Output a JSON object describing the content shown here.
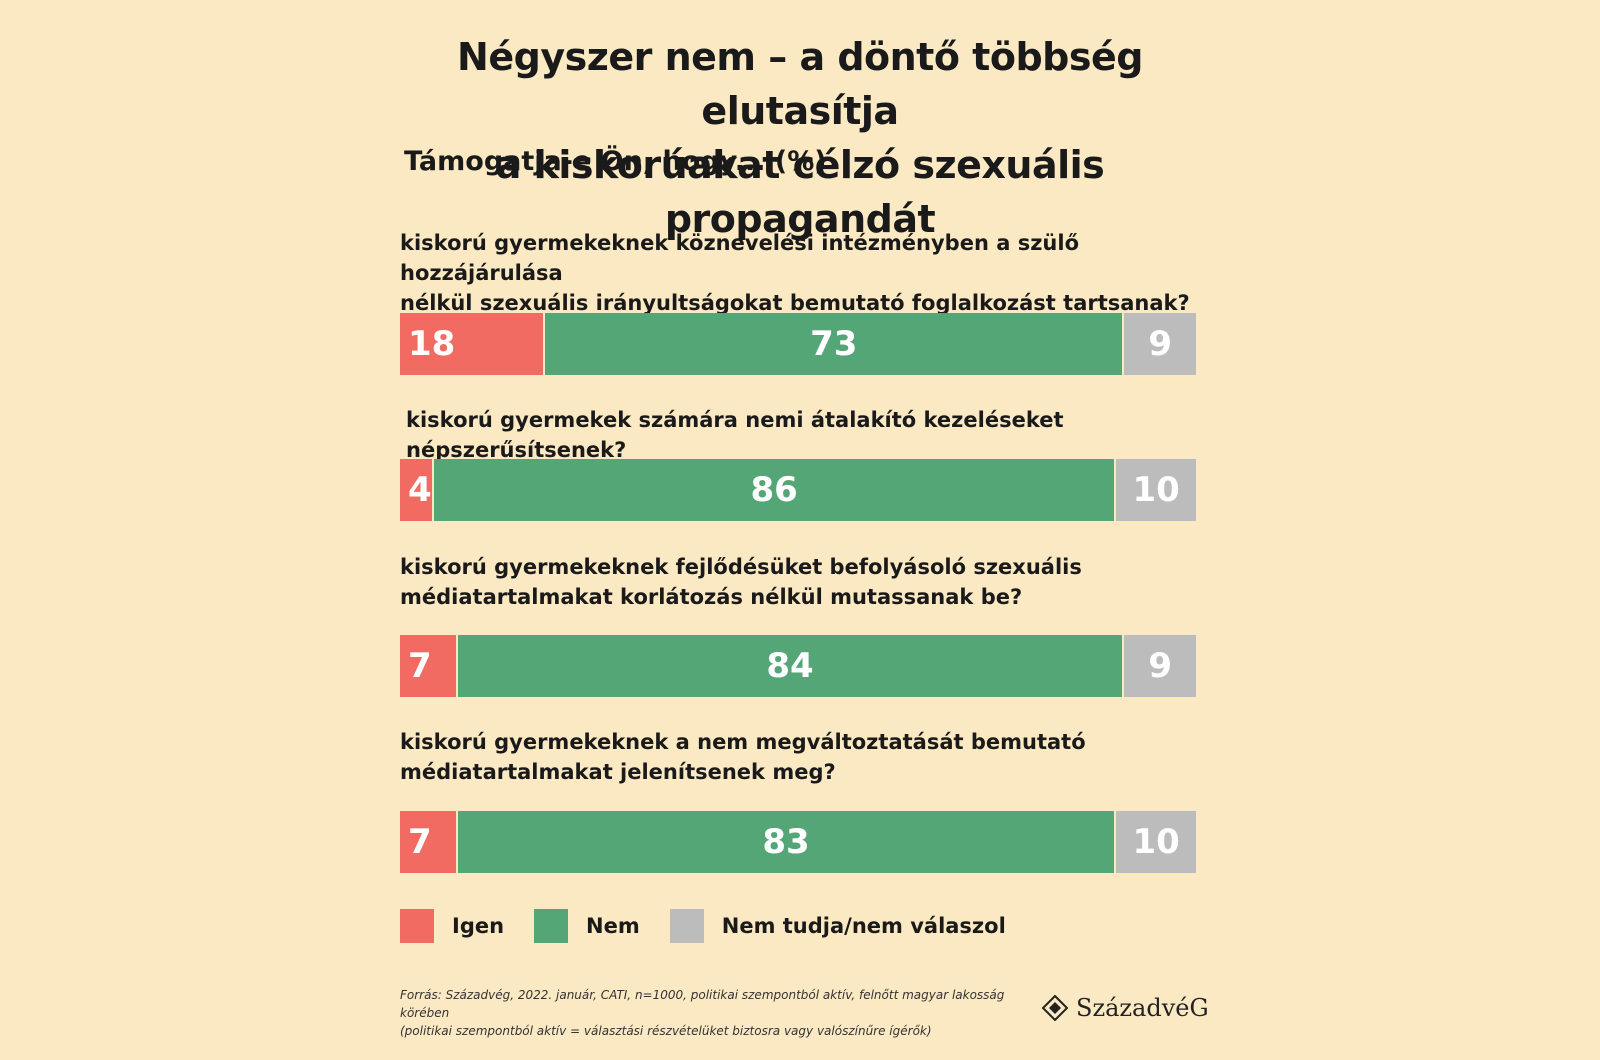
{
  "title_line1": "Négyszer nem – a döntő többség elutasítja",
  "title_line2": "a kiskorúakat célzó szexuális propagandát",
  "subtitle": "Támogatja-e Ön, hogy... (%)",
  "colors": {
    "Igen": "#f26b63",
    "Nem": "#54a677",
    "Nem tudja/nem válaszol": "#bcbcbc",
    "background": "#fbe9c3"
  },
  "chart_data": {
    "type": "bar",
    "orientation": "horizontal-stacked-100",
    "categories": [
      "kiskorú gyermekeknek köznevelési intézményben a szülő hozzájárulása nélkül szexuális irányultságokat bemutató foglalkozást tartsanak?",
      "kiskorú gyermekek számára nemi átalakító kezeléseket népszerűsítsenek?",
      "kiskorú gyermekeknek fejlődésüket befolyásoló szexuális médiatartalmakat korlátozás nélkül mutassanak be?",
      "kiskorú gyermekeknek a nem megváltoztatását bemutató médiatartalmakat jelenítsenek meg?"
    ],
    "series": [
      {
        "name": "Igen",
        "values": [
          18,
          4,
          7,
          7
        ]
      },
      {
        "name": "Nem",
        "values": [
          73,
          86,
          84,
          83
        ]
      },
      {
        "name": "Nem tudja/nem válaszol",
        "values": [
          9,
          10,
          9,
          10
        ]
      }
    ],
    "legend_position": "bottom-left"
  },
  "questions": [
    {
      "line1": "kiskorú gyermekeknek köznevelési intézményben a szülő hozzájárulása",
      "line2": "nélkül szexuális irányultságokat bemutató foglalkozást tartsanak?"
    },
    {
      "line1": "kiskorú gyermekek számára nemi átalakító kezeléseket népszerűsítsenek?",
      "line2": ""
    },
    {
      "line1": "kiskorú gyermekeknek fejlődésüket befolyásoló szexuális",
      "line2": "médiatartalmakat korlátozás nélkül mutassanak be?"
    },
    {
      "line1": "kiskorú gyermekeknek a nem megváltoztatását bemutató",
      "line2": "médiatartalmakat jelenítsenek meg?"
    }
  ],
  "legend": [
    "Igen",
    "Nem",
    "Nem tudja/nem válaszol"
  ],
  "source_line1": "Forrás: Századvég, 2022. január, CATI, n=1000, politikai szempontból aktív, felnőtt magyar lakosság körében",
  "source_line2": "(politikai szempontból aktív = választási részvételüket biztosra vagy valószínűre ígérők)",
  "brand": "SzázadvéG"
}
